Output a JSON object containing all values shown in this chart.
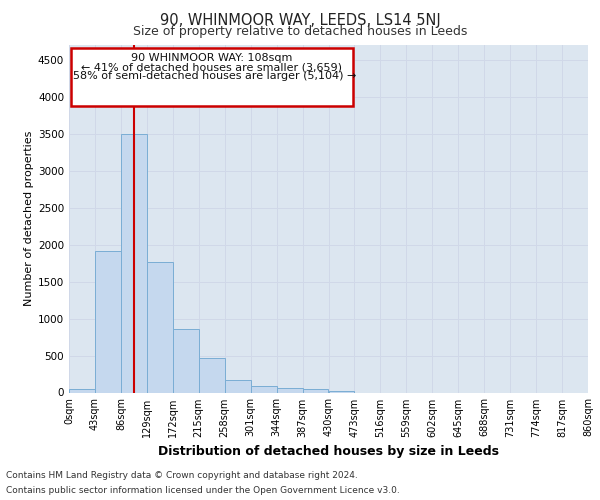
{
  "title": "90, WHINMOOR WAY, LEEDS, LS14 5NJ",
  "subtitle": "Size of property relative to detached houses in Leeds",
  "xlabel": "Distribution of detached houses by size in Leeds",
  "ylabel": "Number of detached properties",
  "bin_labels": [
    "0sqm",
    "43sqm",
    "86sqm",
    "129sqm",
    "172sqm",
    "215sqm",
    "258sqm",
    "301sqm",
    "344sqm",
    "387sqm",
    "430sqm",
    "473sqm",
    "516sqm",
    "559sqm",
    "602sqm",
    "645sqm",
    "688sqm",
    "731sqm",
    "774sqm",
    "817sqm",
    "860sqm"
  ],
  "bin_edges": [
    0,
    43,
    86,
    129,
    172,
    215,
    258,
    301,
    344,
    387,
    430,
    473,
    516,
    559,
    602,
    645,
    688,
    731,
    774,
    817,
    860
  ],
  "bar_heights": [
    50,
    1920,
    3500,
    1770,
    860,
    460,
    175,
    90,
    65,
    50,
    25,
    0,
    0,
    0,
    0,
    0,
    0,
    0,
    0,
    0
  ],
  "bar_color": "#c5d8ee",
  "bar_edge_color": "#7aadd4",
  "grid_color": "#d0d8e8",
  "background_color": "#ffffff",
  "plot_bg_color": "#dce6f0",
  "red_line_x": 108,
  "annotation_line1": "90 WHINMOOR WAY: 108sqm",
  "annotation_line2": "← 41% of detached houses are smaller (3,659)",
  "annotation_line3": "58% of semi-detached houses are larger (5,104) →",
  "annotation_box_color": "#cc0000",
  "ylim": [
    0,
    4700
  ],
  "yticks": [
    0,
    500,
    1000,
    1500,
    2000,
    2500,
    3000,
    3500,
    4000,
    4500
  ],
  "footer_line1": "Contains HM Land Registry data © Crown copyright and database right 2024.",
  "footer_line2": "Contains public sector information licensed under the Open Government Licence v3.0."
}
